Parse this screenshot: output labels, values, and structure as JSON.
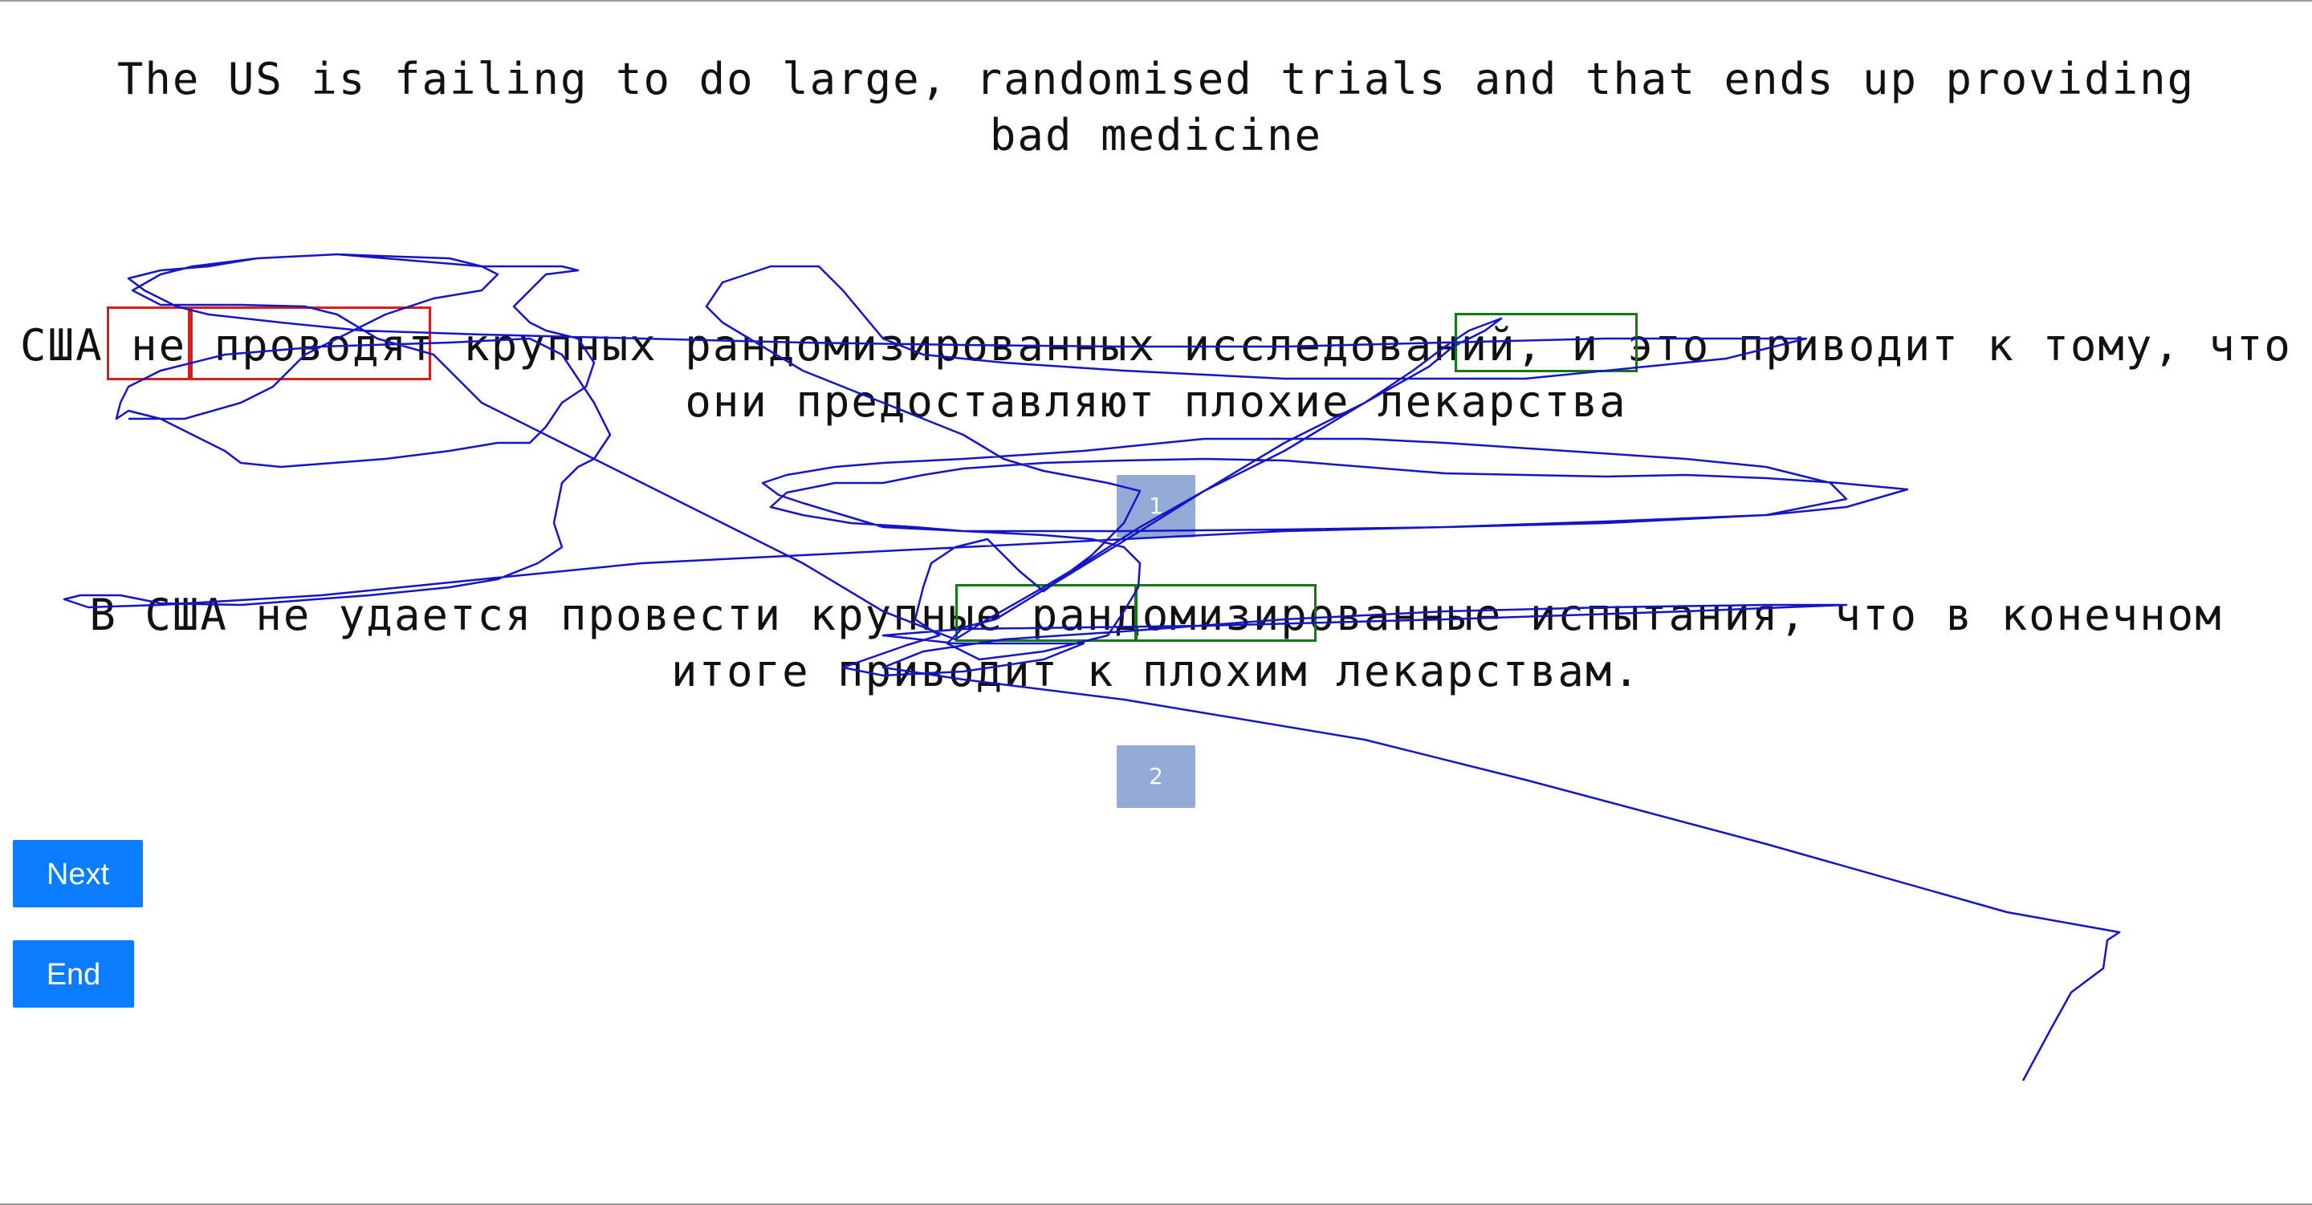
{
  "source": {
    "text": "The US is failing to do large, randomised trials and that ends up providing bad medicine"
  },
  "translations": [
    {
      "text": "США не проводят крупных рандомизированных исследований, и это приводит к тому, что они предоставляют плохие лекарства",
      "rank": "1"
    },
    {
      "text": "В США не удается провести крупные рандомизированные испытания, что в конечном итоге приводит к плохим лекарствам.",
      "rank": "2"
    }
  ],
  "buttons": {
    "next_label": "Next",
    "end_label": "End"
  },
  "colors": {
    "badge": "#93a9d6",
    "button": "#0a7cff",
    "error_highlight": "#d21f1f",
    "good_highlight": "#117a11",
    "gaze_trace": "#1515c8"
  }
}
